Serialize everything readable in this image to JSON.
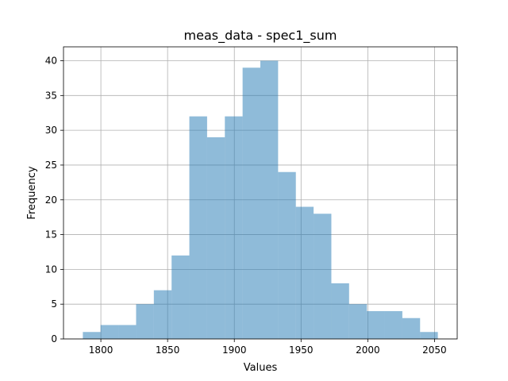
{
  "chart_data": {
    "type": "bar",
    "title": "meas_data - spec1_sum",
    "xlabel": "Values",
    "ylabel": "Frequency",
    "bin_edges": [
      1786.5,
      1799.8,
      1813.1,
      1826.4,
      1839.7,
      1853.0,
      1866.3,
      1879.6,
      1892.9,
      1906.2,
      1919.5,
      1932.8,
      1946.1,
      1959.4,
      1972.7,
      1986.0,
      1999.3,
      2012.6,
      2025.9,
      2039.2,
      2052.5
    ],
    "values": [
      1,
      2,
      2,
      5,
      7,
      12,
      32,
      29,
      32,
      39,
      40,
      24,
      19,
      18,
      8,
      5,
      4,
      4,
      3,
      1
    ],
    "xlim": [
      1772,
      2067
    ],
    "ylim": [
      0,
      42
    ],
    "xticks": [
      1800,
      1850,
      1900,
      1950,
      2000,
      2050
    ],
    "yticks": [
      0,
      5,
      10,
      15,
      20,
      25,
      30,
      35,
      40
    ],
    "grid": true,
    "bar_color": "#1f77b4",
    "bar_alpha": 0.5
  }
}
